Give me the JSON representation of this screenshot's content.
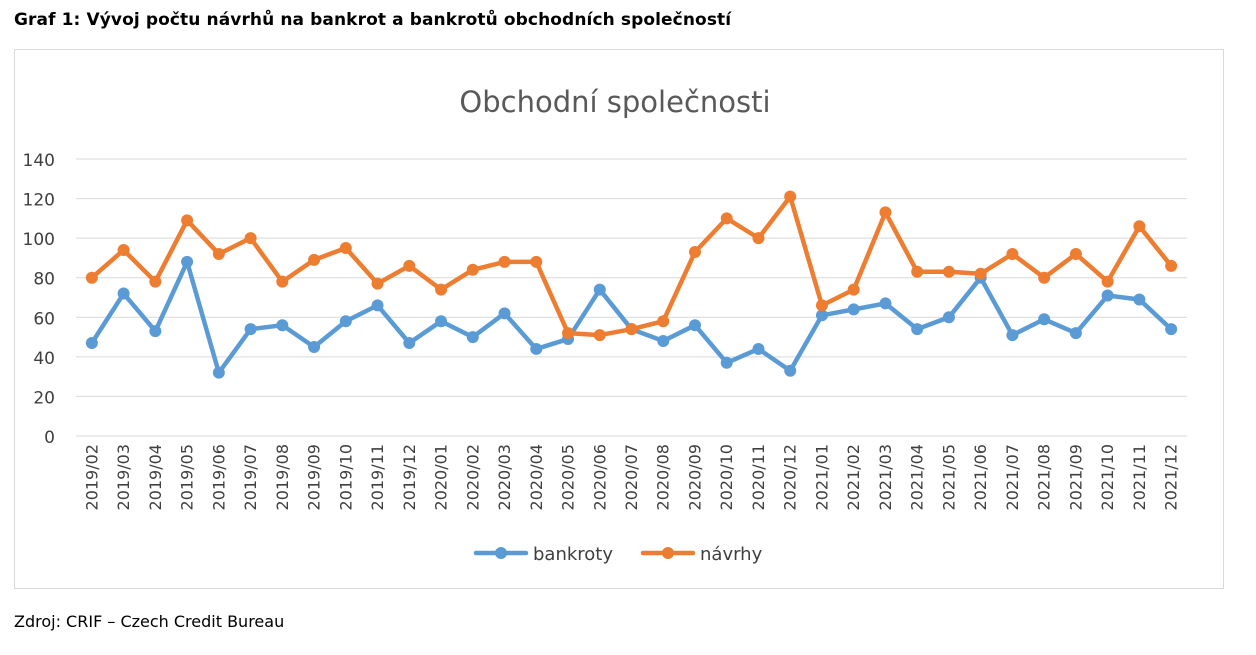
{
  "figure": {
    "title": "Graf 1: Vývoj počtu návrhů na bankrot a bankrotů obchodních společností",
    "source": "Zdroj: CRIF – Czech Credit Bureau"
  },
  "chart_data": {
    "type": "line",
    "title": "Obchodní společnosti",
    "xlabel": "",
    "ylabel": "",
    "ylim": [
      0,
      140
    ],
    "yticks": [
      0,
      20,
      40,
      60,
      80,
      100,
      120,
      140
    ],
    "grid": true,
    "legend_position": "bottom",
    "categories": [
      "2019/02",
      "2019/03",
      "2019/04",
      "2019/05",
      "2019/06",
      "2019/07",
      "2019/08",
      "2019/09",
      "2019/10",
      "2019/11",
      "2019/12",
      "2020/01",
      "2020/02",
      "2020/03",
      "2020/04",
      "2020/05",
      "2020/06",
      "2020/07",
      "2020/08",
      "2020/09",
      "2020/10",
      "2020/11",
      "2020/12",
      "2021/01",
      "2021/02",
      "2021/03",
      "2021/04",
      "2021/05",
      "2021/06",
      "2021/07",
      "2021/08",
      "2021/09",
      "2021/10",
      "2021/11",
      "2021/12"
    ],
    "series": [
      {
        "name": "bankroty",
        "color": "#5B9BD5",
        "values": [
          47,
          72,
          53,
          88,
          32,
          54,
          56,
          45,
          58,
          66,
          47,
          58,
          50,
          62,
          44,
          49,
          74,
          54,
          48,
          56,
          37,
          44,
          33,
          61,
          64,
          67,
          54,
          60,
          80,
          51,
          59,
          52,
          71,
          69,
          54
        ]
      },
      {
        "name": "návrhy",
        "color": "#ED7D31",
        "values": [
          80,
          94,
          78,
          109,
          92,
          100,
          78,
          89,
          95,
          77,
          86,
          74,
          84,
          88,
          88,
          52,
          51,
          54,
          58,
          93,
          110,
          100,
          121,
          66,
          74,
          113,
          83,
          83,
          82,
          92,
          80,
          92,
          78,
          106,
          86
        ]
      }
    ]
  }
}
